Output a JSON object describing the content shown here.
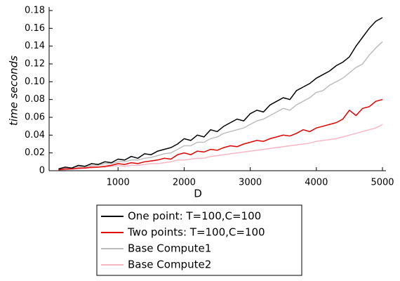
{
  "chart_data": {
    "type": "line",
    "x_label": "D",
    "y_label": "time seconds",
    "x": [
      100,
      200,
      300,
      400,
      500,
      600,
      700,
      800,
      900,
      1000,
      1100,
      1200,
      1300,
      1400,
      1500,
      1600,
      1700,
      1800,
      1900,
      2000,
      2100,
      2200,
      2300,
      2400,
      2500,
      2600,
      2700,
      2800,
      2900,
      3000,
      3100,
      3200,
      3300,
      3400,
      3500,
      3600,
      3700,
      3800,
      3900,
      4000,
      4100,
      4200,
      4300,
      4400,
      4500,
      4600,
      4700,
      4800,
      4900,
      5000
    ],
    "series": [
      {
        "name": "One point: T=100,C=100",
        "color": "#000000",
        "values": [
          0.002,
          0.004,
          0.003,
          0.006,
          0.005,
          0.008,
          0.007,
          0.01,
          0.009,
          0.013,
          0.012,
          0.016,
          0.014,
          0.019,
          0.018,
          0.022,
          0.024,
          0.026,
          0.03,
          0.036,
          0.034,
          0.04,
          0.038,
          0.046,
          0.044,
          0.05,
          0.054,
          0.058,
          0.056,
          0.064,
          0.068,
          0.066,
          0.074,
          0.078,
          0.082,
          0.08,
          0.09,
          0.094,
          0.098,
          0.104,
          0.108,
          0.112,
          0.118,
          0.122,
          0.128,
          0.14,
          0.15,
          0.16,
          0.168,
          0.172
        ]
      },
      {
        "name": "Two points: T=100,C=100",
        "color": "#e00000",
        "values": [
          0.001,
          0.002,
          0.002,
          0.003,
          0.003,
          0.004,
          0.004,
          0.005,
          0.006,
          0.008,
          0.007,
          0.009,
          0.008,
          0.01,
          0.011,
          0.012,
          0.014,
          0.013,
          0.018,
          0.02,
          0.018,
          0.022,
          0.021,
          0.024,
          0.023,
          0.026,
          0.028,
          0.027,
          0.03,
          0.032,
          0.034,
          0.033,
          0.036,
          0.038,
          0.04,
          0.039,
          0.042,
          0.046,
          0.044,
          0.048,
          0.05,
          0.052,
          0.054,
          0.058,
          0.068,
          0.062,
          0.07,
          0.072,
          0.078,
          0.08
        ]
      },
      {
        "name": "Base Compute1",
        "color": "#bdbdbd",
        "values": [
          0.002,
          0.003,
          0.003,
          0.005,
          0.004,
          0.006,
          0.006,
          0.008,
          0.008,
          0.01,
          0.01,
          0.012,
          0.012,
          0.014,
          0.015,
          0.017,
          0.019,
          0.02,
          0.024,
          0.028,
          0.028,
          0.032,
          0.032,
          0.036,
          0.038,
          0.042,
          0.044,
          0.046,
          0.048,
          0.052,
          0.056,
          0.058,
          0.062,
          0.066,
          0.07,
          0.068,
          0.074,
          0.078,
          0.082,
          0.088,
          0.09,
          0.096,
          0.1,
          0.104,
          0.11,
          0.116,
          0.12,
          0.13,
          0.138,
          0.145
        ]
      },
      {
        "name": "Base Compute2",
        "color": "#f7b8c4",
        "values": [
          0.001,
          0.001,
          0.002,
          0.002,
          0.003,
          0.003,
          0.004,
          0.004,
          0.005,
          0.006,
          0.005,
          0.006,
          0.006,
          0.007,
          0.008,
          0.008,
          0.009,
          0.01,
          0.012,
          0.012,
          0.013,
          0.014,
          0.014,
          0.016,
          0.017,
          0.018,
          0.019,
          0.02,
          0.021,
          0.022,
          0.023,
          0.024,
          0.025,
          0.026,
          0.027,
          0.028,
          0.029,
          0.03,
          0.031,
          0.033,
          0.034,
          0.035,
          0.036,
          0.038,
          0.04,
          0.042,
          0.044,
          0.046,
          0.048,
          0.052
        ]
      }
    ],
    "xlim": [
      0,
      5000
    ],
    "xticks": [
      1000,
      2000,
      3000,
      4000,
      5000
    ],
    "ylim": [
      0,
      0.18
    ],
    "yticks": [
      0,
      0.02,
      0.04,
      0.06,
      0.08,
      {
        "value": 0.1,
        "label": "0.10"
      },
      0.12,
      0.14,
      0.16,
      0.18
    ]
  }
}
